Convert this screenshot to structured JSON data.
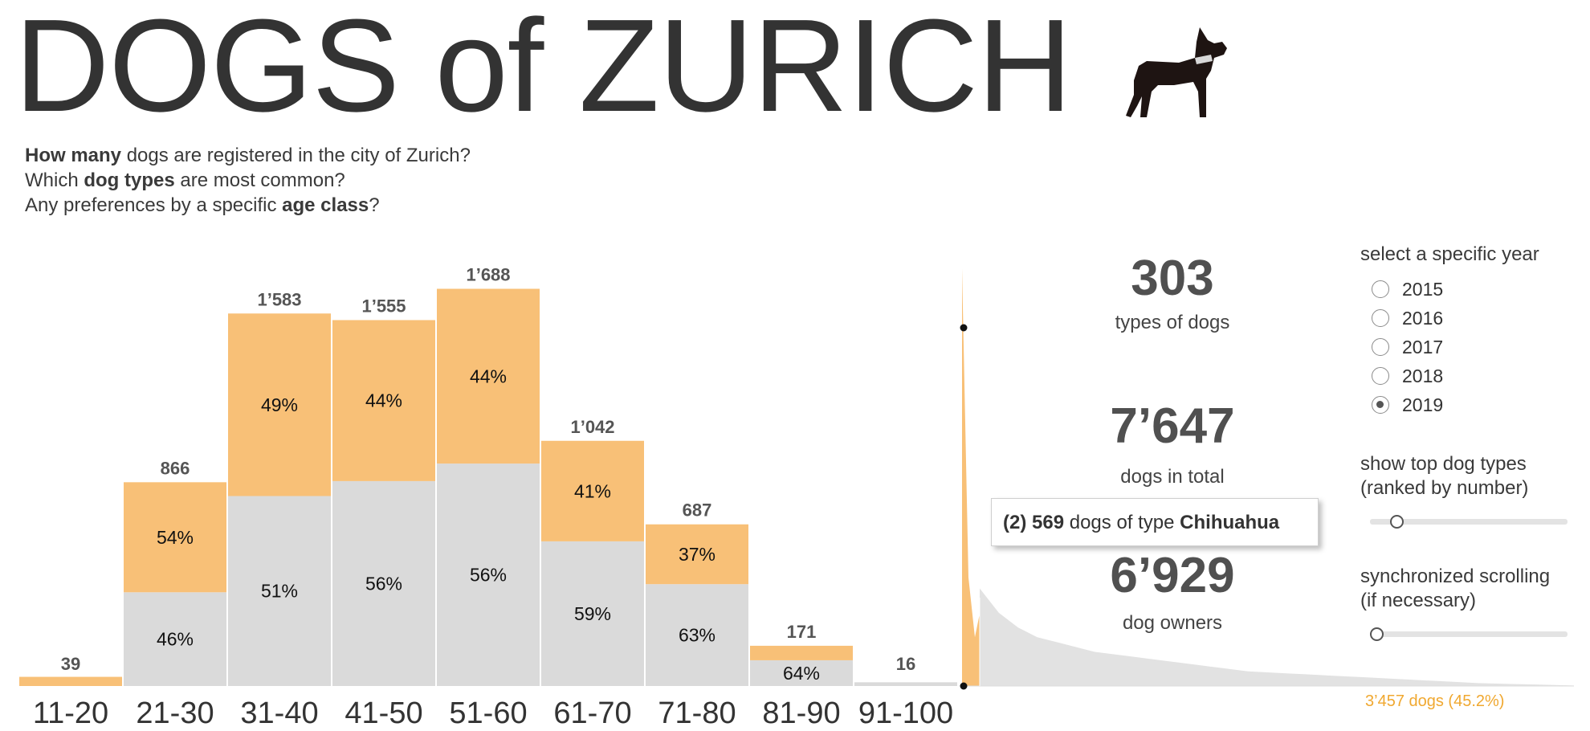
{
  "header": {
    "title": "DOGS of ZURICH",
    "intro_line1": {
      "bold": "How many",
      "rest": " dogs are registered in the city of Zurich?"
    },
    "intro_line2": {
      "pre": "Which ",
      "bold": "dog types",
      "rest": " are most common?"
    },
    "intro_line3": {
      "pre": "Any preferences by a specific ",
      "bold": "age class",
      "rest": "?"
    }
  },
  "stats": {
    "types_value": "303",
    "types_label": "types of dogs",
    "total_value": "7’647",
    "total_label": "dogs in total",
    "owners_value": "6’929",
    "owners_label": "dog owners"
  },
  "tooltip": {
    "rank": "(2)",
    "count": "569",
    "middle": " dogs of type ",
    "type": "Chihuahua"
  },
  "controls": {
    "year_title": "select a specific year",
    "years": [
      {
        "label": "2015",
        "selected": false
      },
      {
        "label": "2016",
        "selected": false
      },
      {
        "label": "2017",
        "selected": false
      },
      {
        "label": "2018",
        "selected": false
      },
      {
        "label": "2019",
        "selected": true
      }
    ],
    "top_types_title_line1": "show top dog types",
    "top_types_title_line2": "(ranked by number)",
    "top_types_slider_fraction": 0.1,
    "sync_title_line1": "synchronized scrolling",
    "sync_title_line2": "(if necessary)",
    "sync_slider_fraction": 0.0,
    "selection_note": "3’457 dogs   (45.2%)"
  },
  "colors": {
    "orange": "#f8c077",
    "grey": "#dadada",
    "dark_text": "#333333",
    "note": "#f0a830"
  },
  "chart_data": [
    {
      "type": "bar",
      "categories": [
        "11-20",
        "21-30",
        "31-40",
        "41-50",
        "51-60",
        "61-70",
        "71-80",
        "81-90",
        "91-100"
      ],
      "values": [
        39,
        866,
        1583,
        1555,
        1688,
        1042,
        687,
        171,
        16
      ],
      "value_labels": [
        "39",
        "866",
        "1’583",
        "1’555",
        "1’688",
        "1’042",
        "687",
        "171",
        "16"
      ],
      "series": [
        {
          "color": "#dadada",
          "share": [
            0,
            46,
            51,
            56,
            56,
            59,
            63,
            64,
            100
          ]
        },
        {
          "color": "#f8c077",
          "share": [
            100,
            54,
            49,
            44,
            44,
            41,
            37,
            36,
            0
          ]
        }
      ],
      "share_labels_visible": [
        [
          "",
          "46%",
          "51%",
          "56%",
          "56%",
          "59%",
          "63%",
          "64%",
          ""
        ],
        [
          "",
          "54%",
          "49%",
          "44%",
          "44%",
          "41%",
          "37%",
          "",
          ""
        ]
      ],
      "ylim": [
        0,
        1700
      ],
      "grid": false,
      "title": "",
      "xlabel": "",
      "ylabel": ""
    },
    {
      "type": "area",
      "x_description": "dog types ranked by number",
      "series_values_approx": [
        770,
        569,
        420,
        300,
        200,
        150,
        120,
        100,
        90,
        80,
        70,
        65,
        60,
        55,
        50,
        45,
        40,
        35,
        30,
        28,
        26,
        24,
        22,
        20,
        18,
        16,
        14,
        12,
        10,
        8,
        6,
        5,
        4,
        3,
        2,
        1
      ],
      "highlighted_top_n": 2,
      "title": "",
      "xlabel": "",
      "ylabel": ""
    }
  ]
}
